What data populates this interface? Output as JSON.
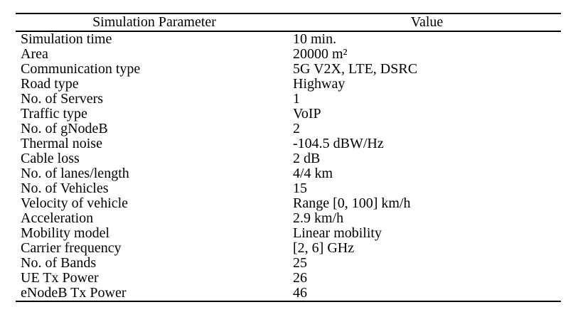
{
  "table": {
    "headers": {
      "parameter": "Simulation Parameter",
      "value": "Value"
    },
    "rows": [
      {
        "param": "Simulation time",
        "value": "10 min."
      },
      {
        "param": "Area",
        "value": "20000 m²"
      },
      {
        "param": "Communication type",
        "value": "5G V2X, LTE, DSRC"
      },
      {
        "param": "Road type",
        "value": "Highway"
      },
      {
        "param": "No. of Servers",
        "value": "1"
      },
      {
        "param": "Traffic type",
        "value": "VoIP"
      },
      {
        "param": "No. of gNodeB",
        "value": "2"
      },
      {
        "param": "Thermal noise",
        "value": "-104.5 dBW/Hz"
      },
      {
        "param": "Cable loss",
        "value": "2 dB"
      },
      {
        "param": "No. of lanes/length",
        "value": "4/4 km"
      },
      {
        "param": "No. of Vehicles",
        "value": "15"
      },
      {
        "param": "Velocity of vehicle",
        "value": "Range [0, 100] km/h"
      },
      {
        "param": "Acceleration",
        "value": "2.9 km/h"
      },
      {
        "param": "Mobility model",
        "value": "Linear mobility"
      },
      {
        "param": "Carrier frequency",
        "value": "[2, 6] GHz"
      },
      {
        "param": "No. of Bands",
        "value": "25"
      },
      {
        "param": "UE Tx Power",
        "value": "26"
      },
      {
        "param": "eNodeB Tx Power",
        "value": "46"
      }
    ],
    "colors": {
      "text": "#000000",
      "rule": "#000000",
      "background": "#ffffff"
    }
  }
}
